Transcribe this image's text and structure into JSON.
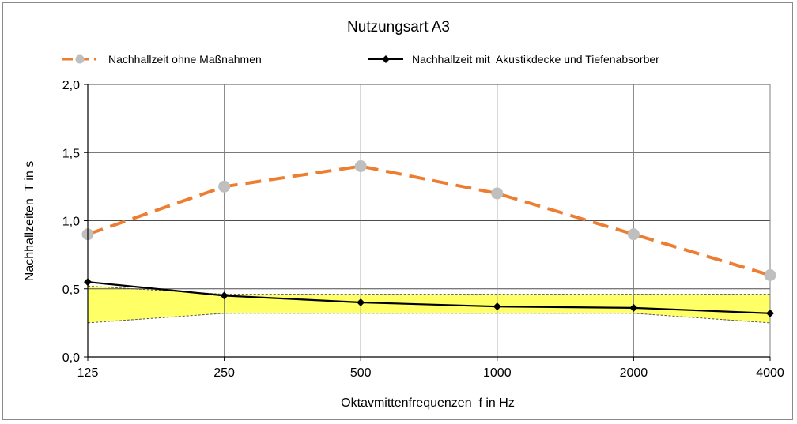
{
  "chart_data": {
    "type": "line",
    "title": "Nutzungsart A3",
    "xlabel": "Oktavmittenfrequenzen  f in Hz",
    "ylabel": "Nachhallzeiten  T in s",
    "categories": [
      "125",
      "250",
      "500",
      "1000",
      "2000",
      "4000"
    ],
    "ylim": [
      0,
      2.0
    ],
    "yticks": [
      "0,0",
      "0,5",
      "1,0",
      "1,5",
      "2,0"
    ],
    "ytick_values": [
      0,
      0.5,
      1.0,
      1.5,
      2.0
    ],
    "grid": true,
    "legend_position": "top",
    "series": [
      {
        "name": "Nachhallzeit ohne Maßnahmen",
        "values": [
          0.9,
          1.25,
          1.4,
          1.2,
          0.9,
          0.6
        ],
        "line_color": "#ED7D31",
        "marker_color": "#BFBFBF",
        "line_style": "dashed",
        "marker": "circle"
      },
      {
        "name": "Nachhallzeit mit  Akustikdecke und Tiefenabsorber",
        "values": [
          0.55,
          0.45,
          0.4,
          0.37,
          0.36,
          0.32
        ],
        "line_color": "#000000",
        "marker_color": "#000000",
        "line_style": "solid",
        "marker": "diamond"
      }
    ],
    "tolerance_band": {
      "upper": [
        0.52,
        0.46,
        0.46,
        0.46,
        0.46,
        0.46
      ],
      "lower": [
        0.25,
        0.32,
        0.32,
        0.32,
        0.32,
        0.25
      ],
      "fill_color": "#FFFF66"
    }
  }
}
